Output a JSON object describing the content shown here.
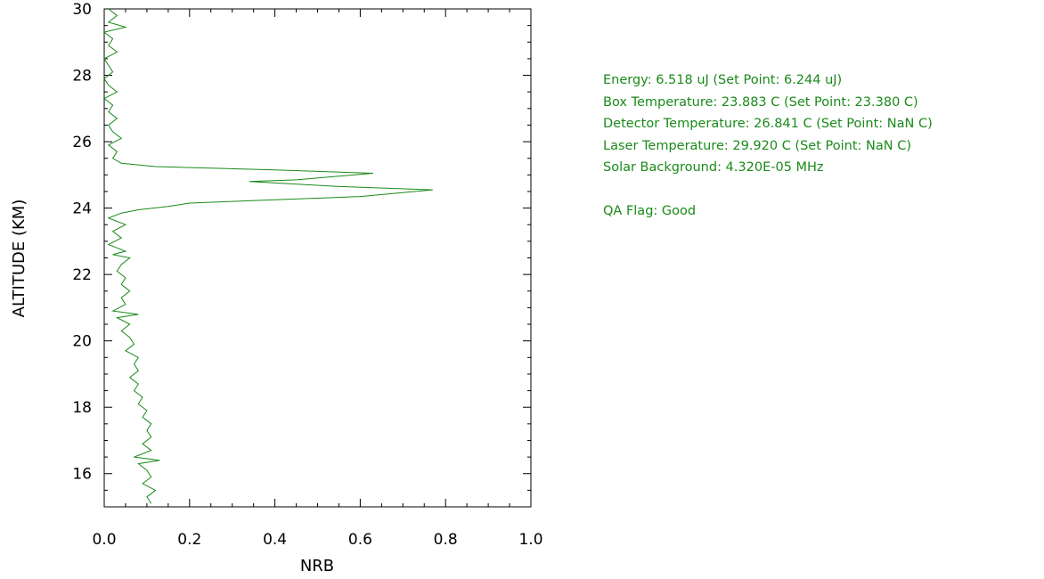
{
  "chart_data": {
    "type": "line",
    "xlabel": "NRB",
    "ylabel": "ALTITUDE (KM)",
    "xlim": [
      0.0,
      1.0
    ],
    "ylim": [
      15,
      30
    ],
    "x_ticks": [
      "0.0",
      "0.2",
      "0.4",
      "0.6",
      "0.8",
      "1.0"
    ],
    "y_ticks": [
      "16",
      "18",
      "20",
      "22",
      "24",
      "26",
      "28",
      "30"
    ],
    "grid": false,
    "line_color": "#1a8a1a",
    "series": [
      {
        "points": [
          [
            0.11,
            15.1
          ],
          [
            0.1,
            15.3
          ],
          [
            0.12,
            15.5
          ],
          [
            0.09,
            15.7
          ],
          [
            0.11,
            15.9
          ],
          [
            0.1,
            16.1
          ],
          [
            0.08,
            16.3
          ],
          [
            0.13,
            16.4
          ],
          [
            0.07,
            16.5
          ],
          [
            0.11,
            16.7
          ],
          [
            0.09,
            16.9
          ],
          [
            0.11,
            17.1
          ],
          [
            0.1,
            17.3
          ],
          [
            0.11,
            17.5
          ],
          [
            0.09,
            17.7
          ],
          [
            0.1,
            17.9
          ],
          [
            0.08,
            18.1
          ],
          [
            0.09,
            18.3
          ],
          [
            0.07,
            18.5
          ],
          [
            0.08,
            18.7
          ],
          [
            0.06,
            18.9
          ],
          [
            0.08,
            19.1
          ],
          [
            0.07,
            19.3
          ],
          [
            0.08,
            19.5
          ],
          [
            0.05,
            19.7
          ],
          [
            0.07,
            19.9
          ],
          [
            0.06,
            20.1
          ],
          [
            0.04,
            20.3
          ],
          [
            0.06,
            20.5
          ],
          [
            0.03,
            20.7
          ],
          [
            0.08,
            20.8
          ],
          [
            0.02,
            20.9
          ],
          [
            0.05,
            21.1
          ],
          [
            0.04,
            21.3
          ],
          [
            0.06,
            21.5
          ],
          [
            0.04,
            21.7
          ],
          [
            0.05,
            21.9
          ],
          [
            0.03,
            22.1
          ],
          [
            0.04,
            22.3
          ],
          [
            0.06,
            22.5
          ],
          [
            0.02,
            22.6
          ],
          [
            0.05,
            22.7
          ],
          [
            0.01,
            22.9
          ],
          [
            0.04,
            23.1
          ],
          [
            0.02,
            23.3
          ],
          [
            0.05,
            23.5
          ],
          [
            0.01,
            23.7
          ],
          [
            0.04,
            23.85
          ],
          [
            0.08,
            23.95
          ],
          [
            0.15,
            24.05
          ],
          [
            0.2,
            24.15
          ],
          [
            0.4,
            24.25
          ],
          [
            0.6,
            24.35
          ],
          [
            0.77,
            24.55
          ],
          [
            0.55,
            24.65
          ],
          [
            0.34,
            24.8
          ],
          [
            0.45,
            24.85
          ],
          [
            0.63,
            25.05
          ],
          [
            0.4,
            25.15
          ],
          [
            0.12,
            25.25
          ],
          [
            0.04,
            25.35
          ],
          [
            0.02,
            25.5
          ],
          [
            0.03,
            25.7
          ],
          [
            0.01,
            25.9
          ],
          [
            0.04,
            26.1
          ],
          [
            0.02,
            26.3
          ],
          [
            0.01,
            26.5
          ],
          [
            0.03,
            26.7
          ],
          [
            0.01,
            26.9
          ],
          [
            0.02,
            27.1
          ],
          [
            0.0,
            27.3
          ],
          [
            0.03,
            27.5
          ],
          [
            0.01,
            27.7
          ],
          [
            0.0,
            27.9
          ],
          [
            0.02,
            28.1
          ],
          [
            0.01,
            28.3
          ],
          [
            0.0,
            28.5
          ],
          [
            0.03,
            28.7
          ],
          [
            0.01,
            28.9
          ],
          [
            0.02,
            29.1
          ],
          [
            0.0,
            29.3
          ],
          [
            0.05,
            29.45
          ],
          [
            0.01,
            29.6
          ],
          [
            0.03,
            29.8
          ],
          [
            0.01,
            30.0
          ]
        ]
      }
    ]
  },
  "info": {
    "energy": "Energy: 6.518 uJ  (Set Point: 6.244 uJ)",
    "box_temperature": "Box Temperature: 23.883 C  (Set Point: 23.380 C)",
    "detector_temperature": "Detector Temperature: 26.841 C  (Set Point: NaN C)",
    "laser_temperature": "Laser Temperature: 29.920 C  (Set Point: NaN C)",
    "solar_background": "Solar Background: 4.320E-05 MHz",
    "qa_flag": "QA Flag: Good"
  }
}
